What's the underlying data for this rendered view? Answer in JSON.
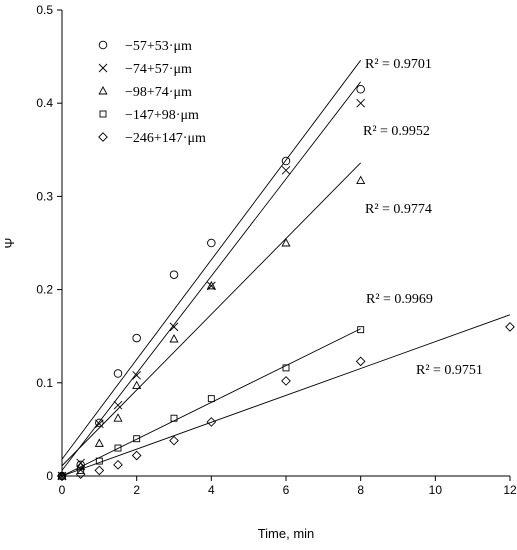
{
  "chart_data": {
    "type": "scatter",
    "title": "",
    "xlabel": "Time, min",
    "ylabel": "Ψ",
    "xlim": [
      0,
      12
    ],
    "ylim": [
      0,
      0.5
    ],
    "xticks": [
      "0",
      "2",
      "4",
      "6",
      "8",
      "10",
      "12"
    ],
    "yticks": [
      "0",
      "0.1",
      "0.2",
      "0.3",
      "0.4",
      "0.5"
    ],
    "grid": false,
    "legend_position": "top-left",
    "series": [
      {
        "name": "−57+53·μm",
        "marker": "circle",
        "x": [
          0,
          0.5,
          1,
          1.5,
          2,
          3,
          4,
          6,
          8
        ],
        "y": [
          0,
          0.012,
          0.057,
          0.11,
          0.148,
          0.216,
          0.25,
          0.338,
          0.415
        ],
        "fit": {
          "x_end": 8,
          "y_at_0": 0.018,
          "y_at_end": 0.446
        },
        "r2_label": "R² = 0.9701"
      },
      {
        "name": "−74+57·μm",
        "marker": "cross",
        "x": [
          0,
          0.5,
          1,
          1.5,
          2,
          3,
          4,
          6,
          8
        ],
        "y": [
          0,
          0.014,
          0.056,
          0.076,
          0.108,
          0.16,
          0.204,
          0.328,
          0.4
        ],
        "fit": {
          "x_end": 8,
          "y_at_0": 0.006,
          "y_at_end": 0.423
        },
        "r2_label": "R² = 0.9952"
      },
      {
        "name": "−98+74·μm",
        "marker": "triangle",
        "x": [
          0,
          0.5,
          1,
          1.5,
          2,
          3,
          4,
          6,
          8
        ],
        "y": [
          0,
          0.01,
          0.035,
          0.062,
          0.097,
          0.147,
          0.204,
          0.25,
          0.317
        ],
        "fit": {
          "x_end": 8,
          "y_at_0": 0.011,
          "y_at_end": 0.336
        },
        "r2_label": "R² = 0.9774"
      },
      {
        "name": "−147+98·μm",
        "marker": "square",
        "x": [
          0,
          0.5,
          1,
          1.5,
          2,
          3,
          4,
          6,
          8
        ],
        "y": [
          0,
          0.006,
          0.016,
          0.03,
          0.04,
          0.062,
          0.083,
          0.116,
          0.157
        ],
        "fit": {
          "x_end": 8,
          "y_at_0": 0.0,
          "y_at_end": 0.158
        },
        "r2_label": "R² = 0.9969"
      },
      {
        "name": "−246+147·μm",
        "marker": "diamond",
        "x": [
          0,
          0.5,
          1,
          1.5,
          2,
          3,
          4,
          6,
          8,
          12
        ],
        "y": [
          0,
          0.002,
          0.006,
          0.012,
          0.022,
          0.038,
          0.058,
          0.102,
          0.123,
          0.16
        ],
        "fit": {
          "x_end": 12,
          "y_at_0": 0.0,
          "y_at_end": 0.173
        },
        "r2_label": "R² = 0.9751"
      }
    ]
  }
}
